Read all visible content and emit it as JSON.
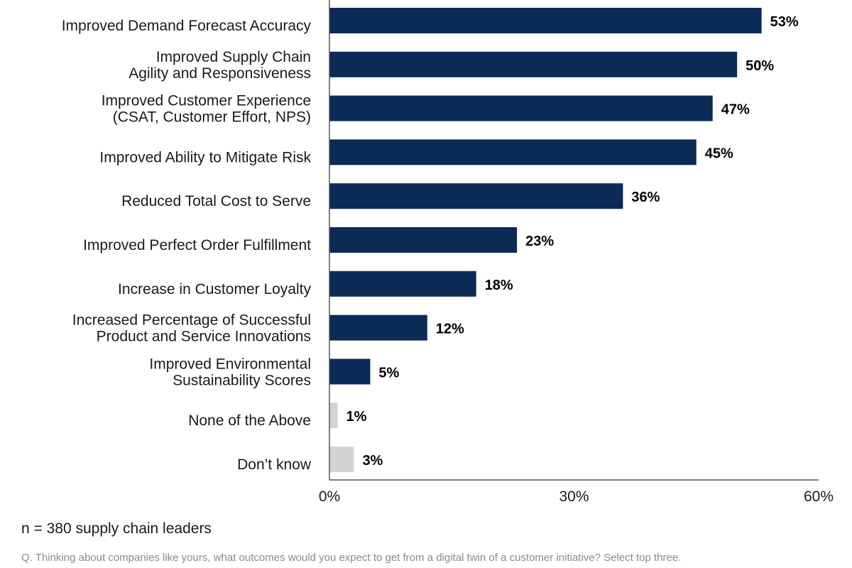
{
  "chart_data": {
    "type": "bar",
    "orientation": "horizontal",
    "categories": [
      [
        "Improved Demand Forecast Accuracy"
      ],
      [
        "Improved Supply Chain",
        "Agility and Responsiveness"
      ],
      [
        "Improved Customer Experience",
        "(CSAT, Customer Effort, NPS)"
      ],
      [
        "Improved Ability to Mitigate Risk"
      ],
      [
        "Reduced Total Cost to Serve"
      ],
      [
        "Improved Perfect Order Fulfillment"
      ],
      [
        "Increase in Customer Loyalty"
      ],
      [
        "Increased Percentage of Successful",
        "Product and Service Innovations"
      ],
      [
        "Improved Environmental",
        "Sustainability Scores"
      ],
      [
        "None of the Above"
      ],
      [
        "Don’t know"
      ]
    ],
    "values": [
      53,
      50,
      47,
      45,
      36,
      23,
      18,
      12,
      5,
      1,
      3
    ],
    "value_labels": [
      "53%",
      "50%",
      "47%",
      "45%",
      "36%",
      "23%",
      "18%",
      "12%",
      "5%",
      "1%",
      "3%"
    ],
    "bar_colors": [
      "#0b2a56",
      "#0b2a56",
      "#0b2a56",
      "#0b2a56",
      "#0b2a56",
      "#0b2a56",
      "#0b2a56",
      "#0b2a56",
      "#0b2a56",
      "#d3d3d3",
      "#d3d3d3"
    ],
    "xlim": [
      0,
      60
    ],
    "x_ticks": [
      0,
      30,
      60
    ],
    "x_tick_labels": [
      "0%",
      "30%",
      "60%"
    ],
    "grid": false,
    "legend": "none"
  },
  "note": "n = 380 supply chain leaders",
  "question": "Q. Thinking about companies like yours, what outcomes would you expect to get from a digital twin of a customer initiative? Select top three.",
  "colors": {
    "accent": "#0b2a56",
    "neutral": "#d3d3d3",
    "axis": "#555555"
  }
}
